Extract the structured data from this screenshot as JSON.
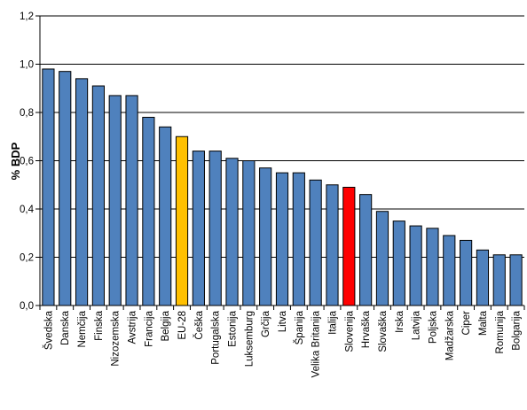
{
  "chart_data": {
    "type": "bar",
    "title": "",
    "xlabel": "",
    "ylabel": "% BDP",
    "ylim": [
      0,
      1.2
    ],
    "yticks": [
      "0,0",
      "0,2",
      "0,4",
      "0,6",
      "0,8",
      "1,0",
      "1,2"
    ],
    "ytick_values": [
      0,
      0.2,
      0.4,
      0.6,
      0.8,
      1.0,
      1.2
    ],
    "grid": true,
    "categories": [
      "Švedska",
      "Danska",
      "Nemčija",
      "Finska",
      "Nizozemska",
      "Avstrija",
      "Francija",
      "Belgija",
      "EU-28",
      "Češka",
      "Portugalska",
      "Estonija",
      "Luksemburg",
      "Grčija",
      "Litva",
      "Španija",
      "Velika Britanija",
      "Italija",
      "Slovenija",
      "Hrvaška",
      "Slovaška",
      "Irska",
      "Latvija",
      "Poljska",
      "Madžarska",
      "Ciper",
      "Malta",
      "Romunija",
      "Bolgarija"
    ],
    "values": [
      0.98,
      0.97,
      0.94,
      0.91,
      0.87,
      0.87,
      0.78,
      0.74,
      0.7,
      0.64,
      0.64,
      0.61,
      0.6,
      0.57,
      0.55,
      0.55,
      0.52,
      0.5,
      0.49,
      0.46,
      0.39,
      0.35,
      0.33,
      0.32,
      0.29,
      0.27,
      0.23,
      0.21,
      0.21
    ],
    "colors": {
      "default": "#4F81BD",
      "highlight": {
        "EU-28": "#FFC000",
        "Slovenija": "#FF0000"
      },
      "plot_background": "#FFFFFF",
      "gridline": "#000000"
    }
  }
}
